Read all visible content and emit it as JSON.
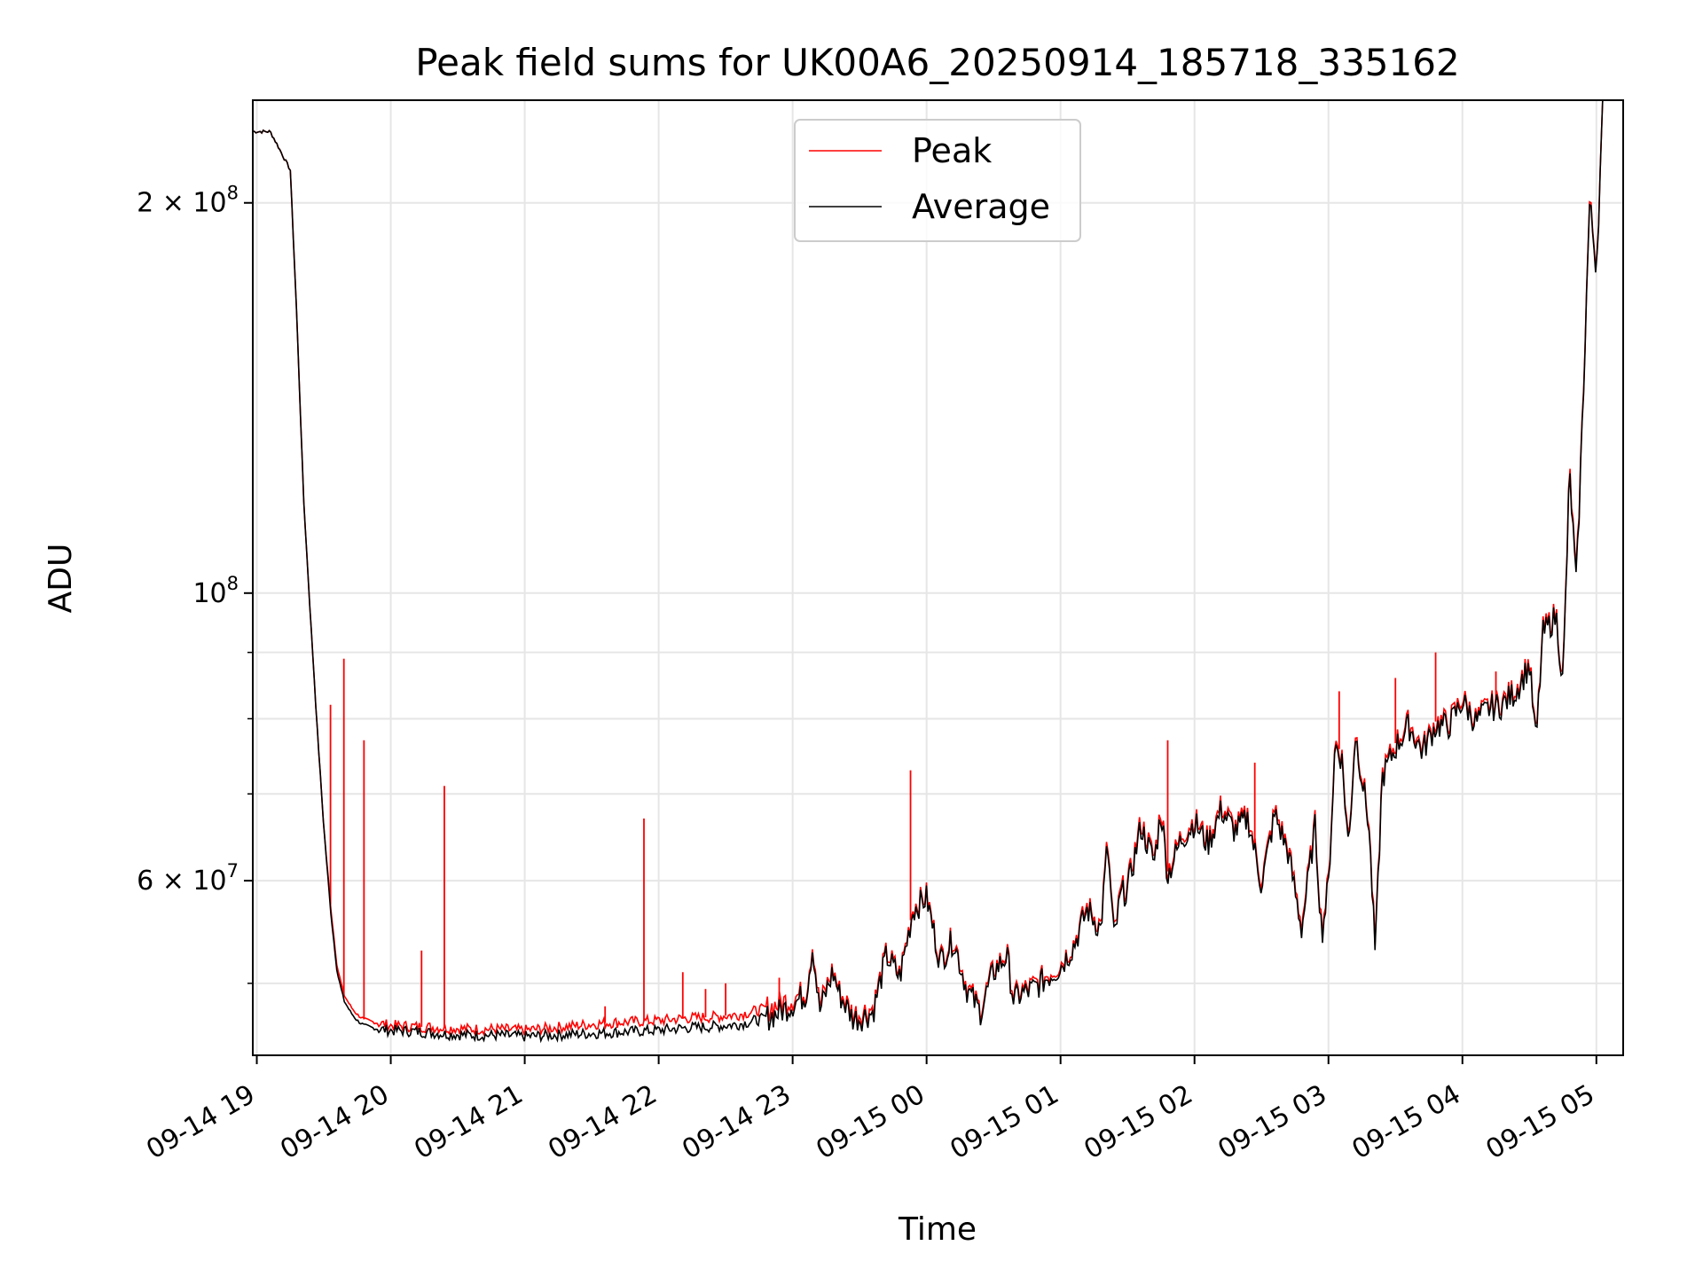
{
  "chart_data": {
    "type": "line",
    "title": "Peak field sums for UK00A6_20250914_185718_335162",
    "xlabel": "Time",
    "ylabel": "ADU",
    "yscale": "log",
    "ylim": [
      44000000,
      240000000
    ],
    "xlim_hours": [
      18.97,
      29.2
    ],
    "x_ticks": [
      {
        "label": "09-14 19",
        "hour": 19
      },
      {
        "label": "09-14 20",
        "hour": 20
      },
      {
        "label": "09-14 21",
        "hour": 21
      },
      {
        "label": "09-14 22",
        "hour": 22
      },
      {
        "label": "09-14 23",
        "hour": 23
      },
      {
        "label": "09-15 00",
        "hour": 24
      },
      {
        "label": "09-15 01",
        "hour": 25
      },
      {
        "label": "09-15 02",
        "hour": 26
      },
      {
        "label": "09-15 03",
        "hour": 27
      },
      {
        "label": "09-15 04",
        "hour": 28
      },
      {
        "label": "09-15 05",
        "hour": 29
      }
    ],
    "y_ticks": [
      {
        "base": "2 × 10",
        "exp": "8",
        "value": 200000000
      },
      {
        "base": "10",
        "exp": "8",
        "value": 100000000
      },
      {
        "base": "6 × 10",
        "exp": "7",
        "value": 60000000
      }
    ],
    "y_minor_ticks": [
      50000000,
      70000000,
      80000000,
      90000000
    ],
    "grid": true,
    "legend": {
      "position": "top-center",
      "entries": [
        {
          "name": "Peak",
          "color": "#ff0000"
        },
        {
          "name": "Average",
          "color": "#000000"
        }
      ]
    },
    "series": [
      {
        "name": "Average",
        "color": "#000000",
        "x_hours": [
          18.97,
          19.1,
          19.15,
          19.25,
          19.3,
          19.35,
          19.4,
          19.45,
          19.5,
          19.55,
          19.6,
          19.65,
          19.7,
          19.75,
          19.8,
          19.9,
          20.0,
          20.2,
          20.4,
          20.6,
          20.8,
          21.0,
          21.2,
          21.4,
          21.6,
          21.8,
          22.0,
          22.2,
          22.4,
          22.6,
          22.8,
          22.9,
          23.0,
          23.1,
          23.15,
          23.2,
          23.3,
          23.35,
          23.45,
          23.5,
          23.6,
          23.7,
          23.8,
          23.9,
          24.0,
          24.1,
          24.2,
          24.3,
          24.4,
          24.5,
          24.6,
          24.65,
          24.7,
          24.8,
          24.9,
          25.0,
          25.1,
          25.2,
          25.3,
          25.35,
          25.4,
          25.45,
          25.5,
          25.6,
          25.7,
          25.75,
          25.8,
          25.9,
          26.0,
          26.1,
          26.2,
          26.3,
          26.4,
          26.5,
          26.6,
          26.7,
          26.8,
          26.9,
          26.95,
          27.0,
          27.05,
          27.1,
          27.15,
          27.2,
          27.3,
          27.35,
          27.4,
          27.5,
          27.6,
          27.7,
          27.8,
          27.9,
          28.0,
          28.1,
          28.2,
          28.3,
          28.4,
          28.5,
          28.55,
          28.6,
          28.7,
          28.75,
          28.8,
          28.85,
          28.9,
          28.95,
          29.0,
          29.05
        ],
        "values": [
          227000000,
          227000000,
          222000000,
          212000000,
          162000000,
          118000000,
          96000000,
          79000000,
          66000000,
          57000000,
          51000000,
          48500000,
          47500000,
          46800000,
          46400000,
          46100000,
          46000000,
          45900000,
          45700000,
          45600000,
          45600000,
          45500000,
          45600000,
          45700000,
          45800000,
          45900000,
          46000000,
          46200000,
          46300000,
          46500000,
          47000000,
          47500000,
          48200000,
          49000000,
          53500000,
          47500000,
          51000000,
          49000000,
          47000000,
          47000000,
          47500000,
          52500000,
          50500000,
          57000000,
          58200000,
          52000000,
          54000000,
          49500000,
          47500000,
          51000000,
          52500000,
          48500000,
          49000000,
          49500000,
          50500000,
          51500000,
          53500000,
          57000000,
          55000000,
          64000000,
          54000000,
          58500000,
          59000000,
          66000000,
          62000000,
          68000000,
          60500000,
          64500000,
          66500000,
          64000000,
          68000000,
          65500000,
          67000000,
          59500000,
          67500000,
          63000000,
          55000000,
          66000000,
          54500000,
          59500000,
          76500000,
          74500000,
          63500000,
          78000000,
          66500000,
          52500000,
          72000000,
          76000000,
          79000000,
          75500000,
          79000000,
          79000000,
          82500000,
          79500000,
          81500000,
          82000000,
          84000000,
          88000000,
          76500000,
          93000000,
          96000000,
          85000000,
          124000000,
          101000000,
          140000000,
          200000000,
          178000000,
          240000000
        ]
      },
      {
        "name": "Peak",
        "color": "#ff0000",
        "x_hours": [
          18.97,
          19.1,
          19.15,
          19.25,
          19.3,
          19.35,
          19.4,
          19.45,
          19.5,
          19.55,
          19.6,
          19.65,
          19.7,
          19.75,
          19.8,
          19.9,
          20.0,
          20.2,
          20.4,
          20.6,
          20.8,
          21.0,
          21.2,
          21.4,
          21.6,
          21.8,
          22.0,
          22.2,
          22.4,
          22.6,
          22.8,
          22.9,
          23.0,
          23.1,
          23.15,
          23.2,
          23.3,
          23.35,
          23.45,
          23.5,
          23.6,
          23.7,
          23.8,
          23.9,
          24.0,
          24.1,
          24.2,
          24.3,
          24.4,
          24.5,
          24.6,
          24.65,
          24.7,
          24.8,
          24.9,
          25.0,
          25.1,
          25.2,
          25.3,
          25.35,
          25.4,
          25.45,
          25.5,
          25.6,
          25.7,
          25.75,
          25.8,
          25.9,
          26.0,
          26.1,
          26.2,
          26.3,
          26.4,
          26.5,
          26.6,
          26.7,
          26.8,
          26.9,
          26.95,
          27.0,
          27.05,
          27.1,
          27.15,
          27.2,
          27.3,
          27.35,
          27.4,
          27.5,
          27.6,
          27.7,
          27.8,
          27.9,
          28.0,
          28.1,
          28.2,
          28.3,
          28.4,
          28.5,
          28.55,
          28.6,
          28.7,
          28.75,
          28.8,
          28.85,
          28.9,
          28.95,
          29.0,
          29.05
        ],
        "values": [
          227000000,
          227000000,
          222000000,
          212000000,
          162000000,
          118000000,
          96000000,
          79000000,
          66000000,
          57500000,
          51500000,
          49000000,
          48000000,
          47300000,
          46900000,
          46600000,
          46400000,
          46300000,
          46200000,
          46100000,
          46100000,
          46000000,
          46200000,
          46400000,
          46600000,
          46700000,
          46800000,
          47000000,
          47100000,
          47300000,
          47800000,
          48200000,
          48700000,
          49300000,
          53800000,
          48000000,
          51300000,
          49300000,
          47400000,
          47400000,
          47900000,
          52800000,
          50800000,
          57300000,
          58500000,
          52300000,
          54300000,
          49800000,
          47800000,
          51300000,
          52800000,
          48800000,
          49300000,
          49800000,
          50800000,
          51800000,
          53800000,
          57400000,
          55400000,
          64500000,
          54400000,
          59000000,
          59500000,
          66600000,
          62500000,
          68600000,
          61000000,
          65000000,
          67000000,
          64500000,
          68600000,
          66000000,
          67500000,
          60000000,
          68000000,
          63500000,
          55500000,
          66500000,
          55000000,
          60000000,
          77000000,
          75000000,
          64000000,
          78500000,
          67000000,
          53000000,
          72600000,
          76600000,
          79600000,
          76000000,
          79600000,
          79600000,
          83100000,
          80000000,
          82000000,
          82600000,
          84600000,
          88600000,
          77000000,
          93600000,
          96600000,
          85600000,
          125000000,
          102000000,
          141000000,
          201000000,
          179000000,
          240000000
        ]
      }
    ],
    "peak_spikes": [
      {
        "hour": 19.55,
        "value": 82000000
      },
      {
        "hour": 19.65,
        "value": 89000000
      },
      {
        "hour": 19.8,
        "value": 77000000
      },
      {
        "hour": 20.23,
        "value": 53000000
      },
      {
        "hour": 20.4,
        "value": 71000000
      },
      {
        "hour": 21.6,
        "value": 48000000
      },
      {
        "hour": 21.89,
        "value": 67000000
      },
      {
        "hour": 22.18,
        "value": 51000000
      },
      {
        "hour": 22.35,
        "value": 49500000
      },
      {
        "hour": 22.5,
        "value": 50000000
      },
      {
        "hour": 22.9,
        "value": 50500000
      },
      {
        "hour": 23.88,
        "value": 73000000
      },
      {
        "hour": 25.8,
        "value": 77000000
      },
      {
        "hour": 26.45,
        "value": 74000000
      },
      {
        "hour": 27.08,
        "value": 84000000
      },
      {
        "hour": 27.5,
        "value": 86000000
      },
      {
        "hour": 27.8,
        "value": 90000000
      },
      {
        "hour": 28.25,
        "value": 87000000
      }
    ]
  }
}
